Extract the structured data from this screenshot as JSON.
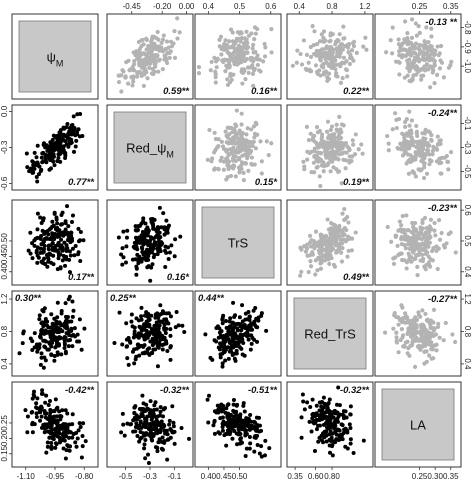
{
  "chart_data": {
    "type": "scatter",
    "variables": [
      {
        "label": "ψ",
        "sub": "M"
      },
      {
        "label": "Red_ψ",
        "sub": "M"
      },
      {
        "label": "TrS",
        "sub": ""
      },
      {
        "label": "Red_TrS",
        "sub": ""
      },
      {
        "label": "LA",
        "sub": ""
      }
    ],
    "ranges": [
      [
        -1.15,
        -0.75
      ],
      [
        -0.62,
        0.02
      ],
      [
        0.37,
        0.62
      ],
      [
        0.3,
        1.25
      ],
      [
        0.12,
        0.37
      ]
    ],
    "ticks": [
      [
        {
          "v": -1.1,
          "t": "-1.10"
        },
        {
          "v": -0.95,
          "t": "-0.95"
        },
        {
          "v": -0.8,
          "t": "-0.80"
        }
      ],
      [
        {
          "v": -0.5,
          "t": "-0.5"
        },
        {
          "v": -0.3,
          "t": "-0.3"
        },
        {
          "v": -0.1,
          "t": "-0.1"
        }
      ],
      [
        {
          "v": 0.4,
          "t": "0.40"
        },
        {
          "v": 0.45,
          "t": "0.45"
        },
        {
          "v": 0.5,
          "t": "0.50"
        }
      ],
      [
        {
          "v": 0.35,
          "t": "0.35"
        },
        {
          "v": 0.6,
          "t": "0.60"
        },
        {
          "v": 0.8,
          "t": "0.80"
        }
      ],
      [
        {
          "v": 0.25,
          "t": "0.25"
        },
        {
          "v": 0.3,
          "t": "0.30"
        },
        {
          "v": 0.35,
          "t": "0.35"
        }
      ]
    ],
    "top_ticks": [
      [],
      [
        {
          "v": -0.45,
          "t": "-0.45"
        },
        {
          "v": -0.2,
          "t": "-0.20"
        },
        {
          "v": 0.0,
          "t": "0.00"
        }
      ],
      [
        {
          "v": 0.4,
          "t": "0.4"
        },
        {
          "v": 0.5,
          "t": "0.5"
        },
        {
          "v": 0.6,
          "t": "0.6"
        }
      ],
      [
        {
          "v": 0.4,
          "t": "0.4"
        },
        {
          "v": 0.8,
          "t": "0.8"
        },
        {
          "v": 1.2,
          "t": "1.2"
        }
      ],
      [
        {
          "v": 0.25,
          "t": "0.25"
        },
        {
          "v": 0.35,
          "t": "0.35"
        }
      ]
    ],
    "left_ticks": [
      [],
      [
        {
          "v": 0.0,
          "t": "0.0"
        },
        {
          "v": -0.3,
          "t": "-0.3"
        },
        {
          "v": -0.6,
          "t": "-0.6"
        }
      ],
      [
        {
          "v": 0.5,
          "t": "0.50"
        },
        {
          "v": 0.45,
          "t": "0.45"
        },
        {
          "v": 0.4,
          "t": "0.40"
        }
      ],
      [
        {
          "v": 1.2,
          "t": "1.2"
        },
        {
          "v": 0.8,
          "t": "0.8"
        },
        {
          "v": 0.4,
          "t": "0.4"
        }
      ],
      [
        {
          "v": 0.25,
          "t": "0.25"
        },
        {
          "v": 0.2,
          "t": "0.20"
        },
        {
          "v": 0.15,
          "t": "0.15"
        }
      ]
    ],
    "right_ticks": [
      [
        {
          "v": -0.8,
          "t": "-0.8"
        },
        {
          "v": -0.9,
          "t": "-0.9"
        },
        {
          "v": -1.0,
          "t": "-1.0"
        }
      ],
      [
        {
          "v": -0.1,
          "t": "-0.1"
        },
        {
          "v": -0.3,
          "t": "-0.3"
        },
        {
          "v": -0.5,
          "t": "-0.5"
        }
      ],
      [
        {
          "v": 0.6,
          "t": "0.6"
        },
        {
          "v": 0.5,
          "t": "0.5"
        },
        {
          "v": 0.4,
          "t": "0.4"
        }
      ],
      [
        {
          "v": 1.2,
          "t": "1.2"
        },
        {
          "v": 0.8,
          "t": "0.8"
        },
        {
          "v": 0.4,
          "t": "0.4"
        }
      ],
      []
    ],
    "correlations": [
      {
        "pair": [
          0,
          1
        ],
        "value": "0.59**",
        "lower": "0.77**"
      },
      {
        "pair": [
          0,
          2
        ],
        "value": "0.16**",
        "lower": "0.17**"
      },
      {
        "pair": [
          0,
          3
        ],
        "value": "0.22**",
        "lower": "0.30**"
      },
      {
        "pair": [
          0,
          4
        ],
        "value": "-0.13 **",
        "lower": "-0.42**"
      },
      {
        "pair": [
          1,
          2
        ],
        "value": "0.15*",
        "lower": "0.16*"
      },
      {
        "pair": [
          1,
          3
        ],
        "value": "0.19**",
        "lower": "0.25**"
      },
      {
        "pair": [
          1,
          4
        ],
        "value": "-0.24**",
        "lower": "-0.32**"
      },
      {
        "pair": [
          2,
          3
        ],
        "value": "0.49**",
        "lower": "0.44**"
      },
      {
        "pair": [
          2,
          4
        ],
        "value": "-0.23**",
        "lower": "-0.51**"
      },
      {
        "pair": [
          3,
          4
        ],
        "value": "-0.27**",
        "lower": "-0.32**"
      }
    ],
    "colors": {
      "lower_points": "#000000",
      "upper_points": "#b3b3b3",
      "diagonal_fill": "#c8c8c8",
      "border": "#333333"
    },
    "grid": false,
    "n_points_per_panel": 180
  }
}
